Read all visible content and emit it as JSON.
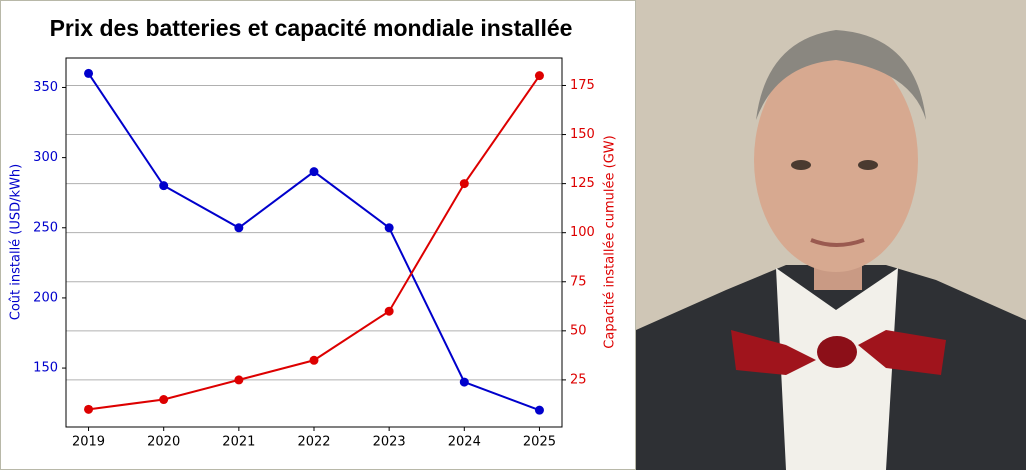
{
  "chart_data": {
    "type": "line",
    "title": "Prix des batteries et capacité mondiale installée",
    "categories": [
      "2019",
      "2020",
      "2021",
      "2022",
      "2023",
      "2024",
      "2025"
    ],
    "y_label": "Coût installé (USD/kWh)",
    "y2_label": "Capacité installée cumulée (GW)",
    "series": [
      {
        "name": "Coût installé (USD/kWh)",
        "color": "#0000cc",
        "values": [
          360,
          280,
          250,
          290,
          250,
          140,
          120
        ]
      },
      {
        "name": "Capacité installée cumulée (GW)",
        "color": "#dd0000",
        "axis": "y2",
        "values": [
          10,
          15,
          25,
          35,
          60,
          125,
          180
        ]
      }
    ],
    "ylim": [
      108,
      371
    ],
    "yticks": [
      150,
      200,
      250,
      300,
      350
    ],
    "y2lim": [
      1,
      189
    ],
    "y2ticks": [
      25,
      50,
      75,
      100,
      125,
      150,
      175
    ],
    "grid": "y2"
  }
}
